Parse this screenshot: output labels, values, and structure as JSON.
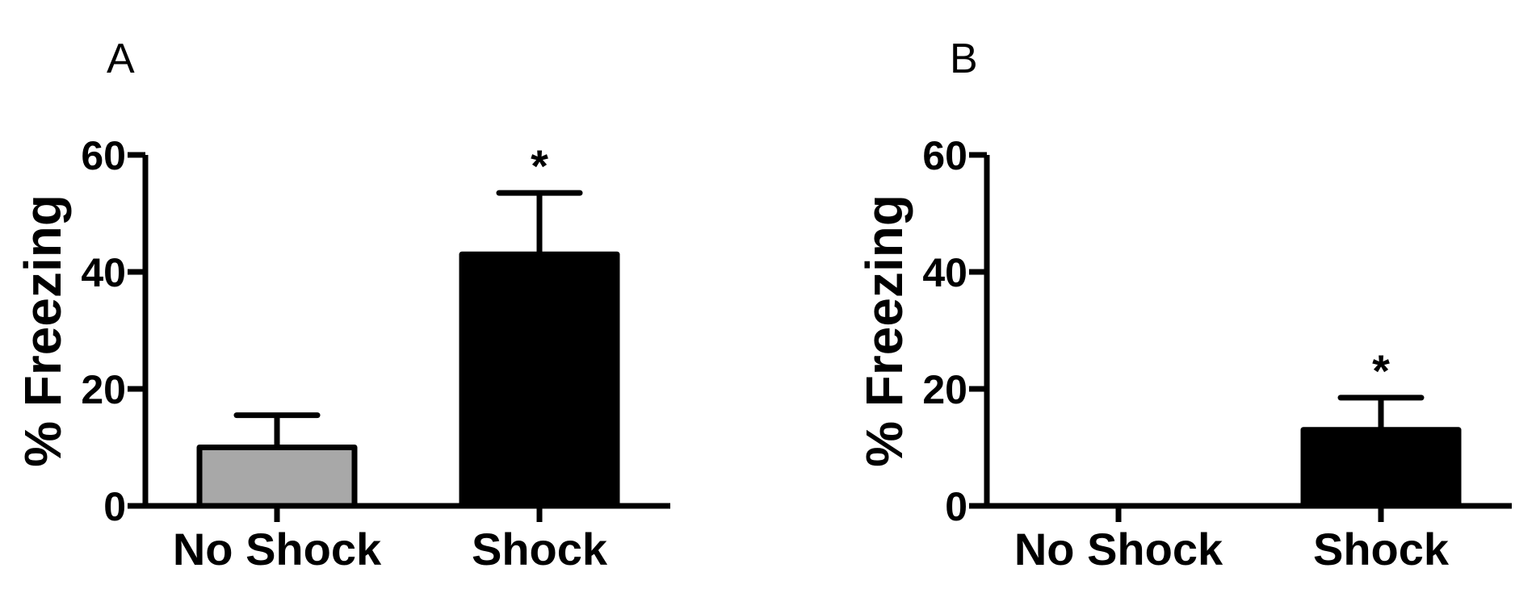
{
  "chart_data": [
    {
      "type": "bar",
      "panel_label": "A",
      "ylabel": "% Freezing",
      "ylim": [
        0,
        60
      ],
      "yticks": [
        "0",
        "20",
        "40",
        "60"
      ],
      "categories": [
        "No Shock",
        "Shock"
      ],
      "values": [
        10,
        43
      ],
      "errors": [
        5.5,
        10.5
      ],
      "bar_colors": [
        "#a8a8a8",
        "#000000"
      ],
      "annotations": [
        "",
        "*"
      ]
    },
    {
      "type": "bar",
      "panel_label": "B",
      "ylabel": "% Freezing",
      "ylim": [
        0,
        60
      ],
      "yticks": [
        "0",
        "20",
        "40",
        "60"
      ],
      "categories": [
        "No Shock",
        "Shock"
      ],
      "values": [
        0,
        13
      ],
      "errors": [
        0,
        5.5
      ],
      "bar_colors": [
        "#a8a8a8",
        "#000000"
      ],
      "annotations": [
        "",
        "*"
      ]
    }
  ]
}
